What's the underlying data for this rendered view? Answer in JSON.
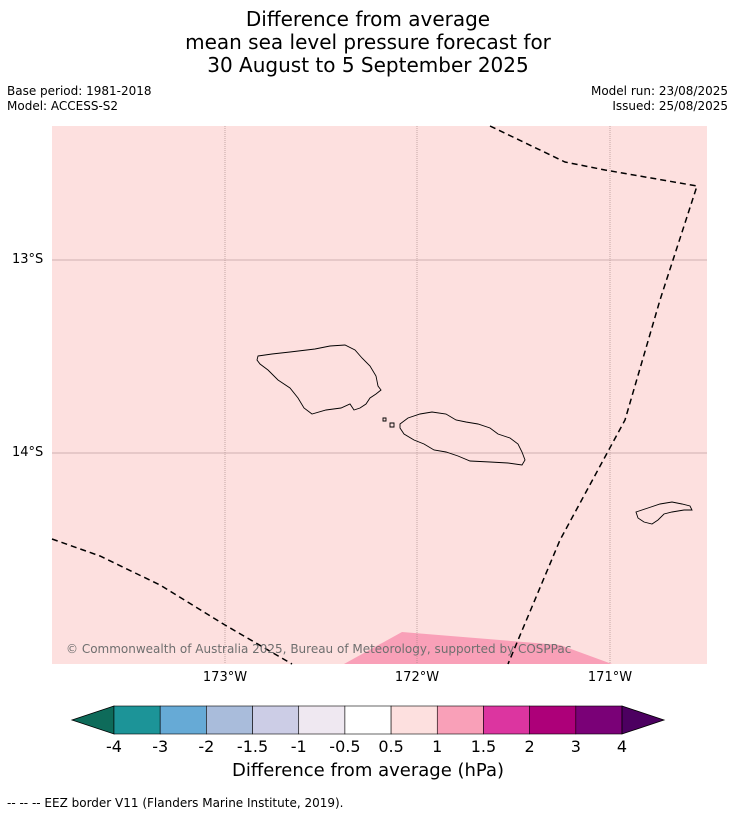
{
  "title": {
    "line1": "Difference from average",
    "line2": "mean sea level pressure forecast for",
    "line3": "30 August to 5 September 2025"
  },
  "meta": {
    "base_period": "Base period: 1981-2018",
    "model": "Model: ACCESS-S2",
    "model_run": "Model run: 23/08/2025",
    "issued": "Issued: 25/08/2025"
  },
  "map": {
    "lat_labels": [
      "13°S",
      "14°S"
    ],
    "lon_labels": [
      "173°W",
      "172°W",
      "171°W"
    ],
    "background_color": "#fde0df",
    "anomaly_patch_color": "#f9a0b8",
    "copyright": "© Commonwealth of Australia 2025, Bureau of Meteorology, supported by COSPPac"
  },
  "colorbar": {
    "labels": [
      "-4",
      "-3",
      "-2",
      "-1.5",
      "-1",
      "-0.5",
      "0.5",
      "1",
      "1.5",
      "2",
      "3",
      "4"
    ],
    "colors": [
      "#0e6b5a",
      "#1c9498",
      "#66aad6",
      "#a9bcdb",
      "#cccde6",
      "#efe8f1",
      "#ffffff",
      "#fde0df",
      "#f9a0b8",
      "#dc35a0",
      "#ad0079",
      "#7a0177",
      "#4c0060"
    ],
    "title": "Difference from average (hPa)"
  },
  "footer": {
    "legend": "--  --  -- EEZ border V11 (Flanders Marine Institute, 2019)."
  }
}
